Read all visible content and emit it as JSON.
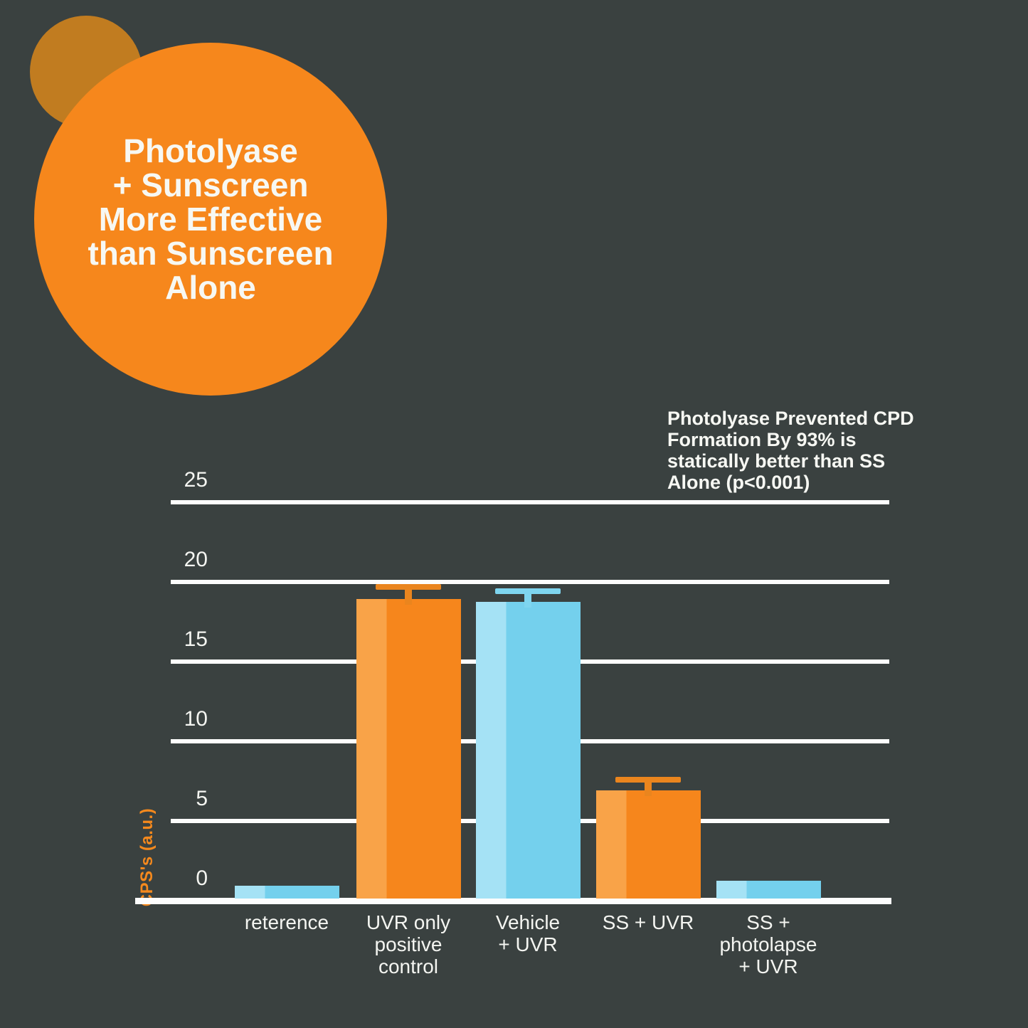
{
  "background": "#3a4140",
  "title_bubble": {
    "lines": [
      "Photolyase",
      "+ Sunscreen",
      "More Effective",
      "than Sunscreen",
      "Alone"
    ],
    "circle_color": "#f6871c",
    "accent_circle_color": "#c17c20",
    "text_color": "#f7f8f3"
  },
  "chart_data": {
    "type": "bar",
    "title": "",
    "xlabel": "",
    "ylabel": "CPS's (a.u.)",
    "ylim": [
      0,
      25
    ],
    "yticks": [
      0,
      5,
      10,
      15,
      20,
      25
    ],
    "grid": true,
    "legend": false,
    "annotation": {
      "lines": [
        "Photolyase Prevented CPD",
        "Formation By 93% is",
        "statically better than SS",
        "Alone (p<0.001)"
      ]
    },
    "categories": [
      "reterence",
      "UVR only positive control",
      "Vehicle + UVR",
      "SS + UVR",
      "SS + photolapse + UVR"
    ],
    "category_lines": [
      [
        "reterence"
      ],
      [
        "UVR only",
        "positive",
        "control"
      ],
      [
        "Vehicle",
        "+ UVR"
      ],
      [
        "SS + UVR"
      ],
      [
        "SS +",
        "photolapse",
        "+ UVR"
      ]
    ],
    "values": [
      0.8,
      18.8,
      18.6,
      6.8,
      1.1
    ],
    "errors": [
      0,
      0.9,
      0.8,
      0.8,
      0
    ],
    "bar_colors": [
      "blue",
      "orange",
      "blue",
      "orange",
      "blue"
    ],
    "colors": {
      "orange": "#f6861c",
      "orange_light": "#f9a348",
      "orange_cap": "#ea851e",
      "blue": "#74d0ed",
      "blue_light": "#a5e2f5",
      "blue_cap": "#7ed5ef",
      "grid": "#fdfdfd",
      "text": "#f4f5f1",
      "ylabel_color": "#f5891d"
    }
  }
}
